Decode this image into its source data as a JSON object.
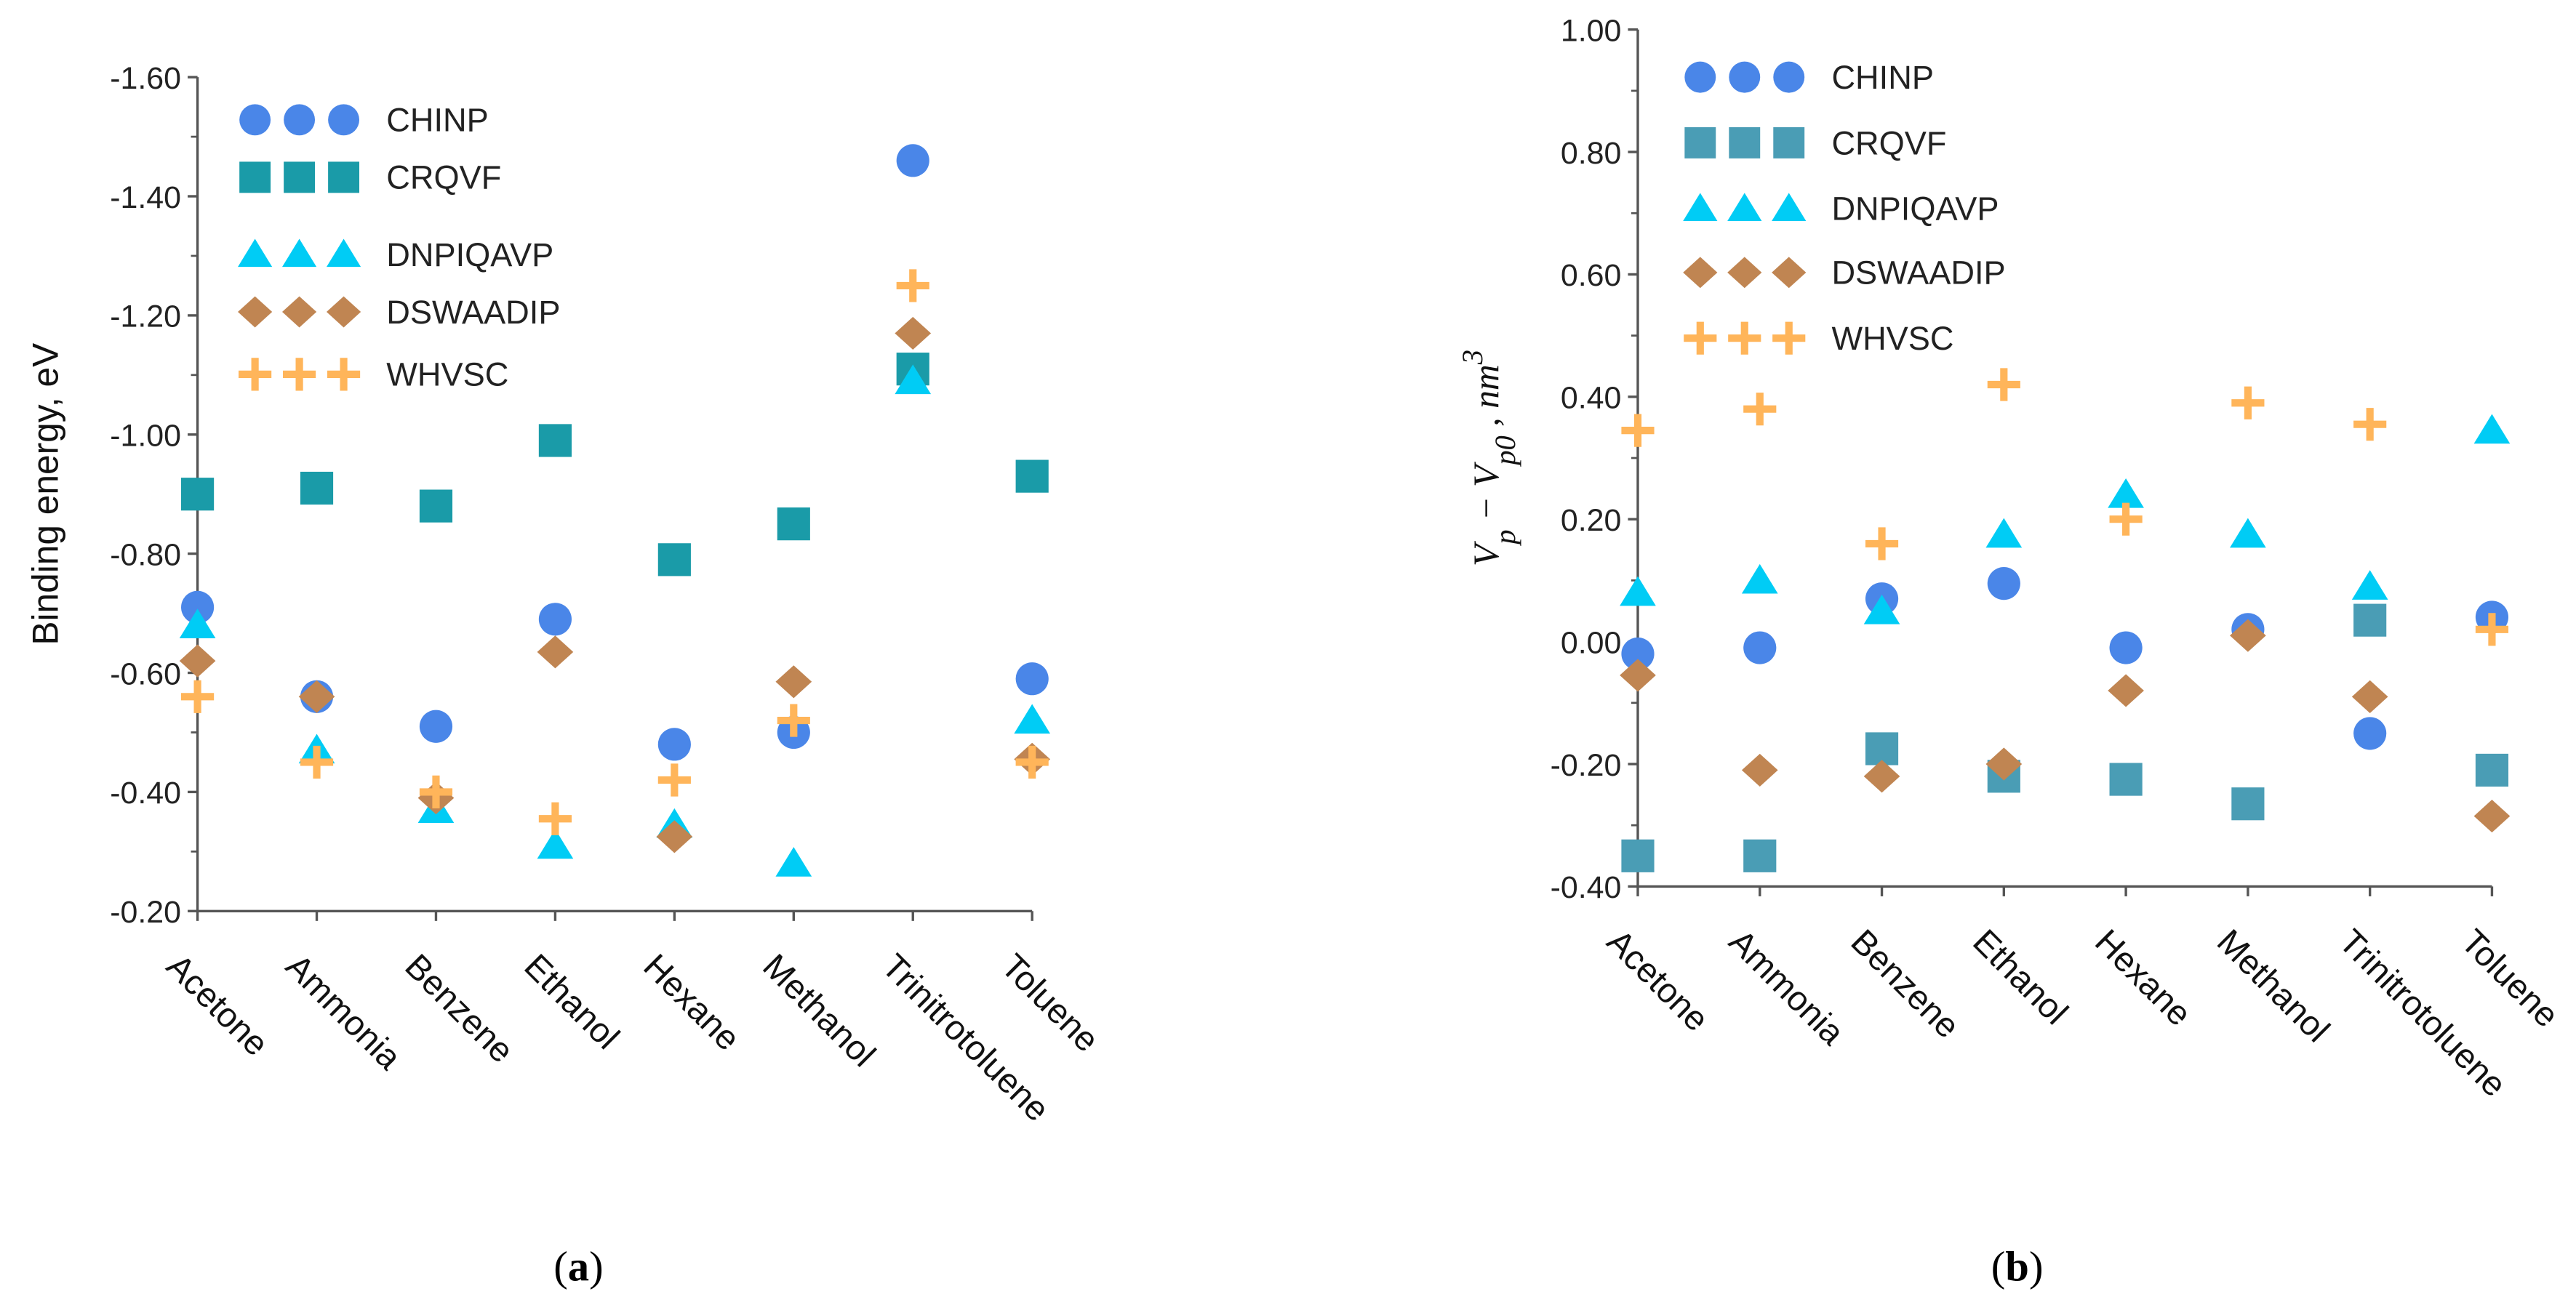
{
  "chart_data": [
    {
      "type": "scatter",
      "panel_label": "a",
      "ylabel": "Binding energy, eV",
      "xlabel": "",
      "categories": [
        "Acetone",
        "Ammonia",
        "Benzene",
        "Ethanol",
        "Hexane",
        "Methanol",
        "Trinitrotoluene",
        "Toluene"
      ],
      "ylim": [
        -0.2,
        -1.6
      ],
      "y_inverted": true,
      "yticks": [
        "-0.20",
        "-0.40",
        "-0.60",
        "-0.80",
        "-1.00",
        "-1.20",
        "-1.40",
        "-1.60"
      ],
      "ytick_values": [
        -0.2,
        -0.4,
        -0.6,
        -0.8,
        -1.0,
        -1.2,
        -1.4,
        -1.6
      ],
      "grid": false,
      "legend_position": "top-left",
      "series": [
        {
          "name": "CHINP",
          "marker": "circle",
          "color": "#4a86e8",
          "values": [
            -0.71,
            -0.56,
            -0.51,
            -0.69,
            -0.48,
            -0.5,
            -1.46,
            -0.59
          ]
        },
        {
          "name": "CRQVF",
          "marker": "square",
          "color": "#1a9ba8",
          "values": [
            -0.9,
            -0.91,
            -0.88,
            -0.99,
            -0.79,
            -0.85,
            -1.11,
            -0.93
          ]
        },
        {
          "name": "DNPIQAVP",
          "marker": "triangle",
          "color": "#00ccf5",
          "values": [
            -0.68,
            -0.47,
            -0.37,
            -0.31,
            -0.345,
            -0.28,
            -1.09,
            -0.52
          ]
        },
        {
          "name": "DSWAADIP",
          "marker": "diamond",
          "color": "#c08552",
          "values": [
            -0.62,
            -0.56,
            -0.39,
            -0.635,
            -0.325,
            -0.585,
            -1.17,
            -0.455
          ]
        },
        {
          "name": "WHVSC",
          "marker": "plus",
          "color": "#ffb55a",
          "values": [
            -0.56,
            -0.45,
            -0.4,
            -0.355,
            -0.42,
            -0.52,
            -1.25,
            -0.45
          ]
        }
      ]
    },
    {
      "type": "scatter",
      "panel_label": "b",
      "ylabel_parts": [
        "V",
        "p",
        " − ",
        "V",
        "p0",
        " , ",
        "nm",
        "3"
      ],
      "xlabel": "",
      "categories": [
        "Acetone",
        "Ammonia",
        "Benzene",
        "Ethanol",
        "Hexane",
        "Methanol",
        "Trinitrotoluene",
        "Toluene"
      ],
      "ylim": [
        -0.4,
        1.0
      ],
      "yticks": [
        "-0.40",
        "-0.20",
        "0.00",
        "0.20",
        "0.40",
        "0.60",
        "0.80",
        "1.00"
      ],
      "ytick_values": [
        -0.4,
        -0.2,
        0,
        0.2,
        0.4,
        0.6,
        0.8,
        1.0
      ],
      "grid": false,
      "legend_position": "top-left",
      "series": [
        {
          "name": "CHINP",
          "marker": "circle",
          "color": "#4a86e8",
          "values": [
            -0.02,
            -0.01,
            0.07,
            0.095,
            -0.01,
            0.02,
            -0.15,
            0.04
          ]
        },
        {
          "name": "CRQVF",
          "marker": "square",
          "color": "#4a9db5",
          "values": [
            -0.35,
            -0.35,
            -0.175,
            -0.22,
            -0.225,
            -0.265,
            0.035,
            -0.21
          ]
        },
        {
          "name": "DNPIQAVP",
          "marker": "triangle",
          "color": "#00ccf5",
          "values": [
            0.08,
            0.1,
            0.05,
            0.175,
            0.24,
            0.175,
            0.09,
            0.345
          ]
        },
        {
          "name": "DSWAADIP",
          "marker": "diamond",
          "color": "#c08552",
          "values": [
            -0.055,
            -0.21,
            -0.22,
            -0.2,
            -0.08,
            0.01,
            -0.09,
            -0.285
          ]
        },
        {
          "name": "WHVSC",
          "marker": "plus",
          "color": "#ffb55a",
          "values": [
            0.345,
            0.38,
            0.16,
            0.42,
            0.2,
            0.39,
            0.355,
            0.02
          ]
        }
      ]
    }
  ],
  "captions": {
    "a": "a",
    "b": "b",
    "open": "(",
    "close": ")"
  }
}
